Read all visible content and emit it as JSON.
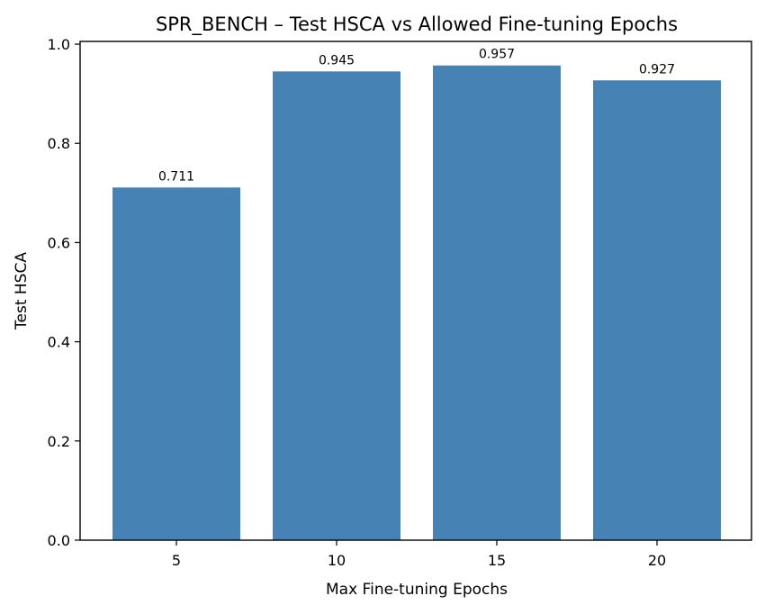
{
  "chart_data": {
    "type": "bar",
    "title": "SPR_BENCH – Test HSCA vs Allowed Fine-tuning Epochs",
    "xlabel": "Max Fine-tuning Epochs",
    "ylabel": "Test HSCA",
    "categories": [
      "5",
      "10",
      "15",
      "20"
    ],
    "values": [
      0.711,
      0.945,
      0.957,
      0.927
    ],
    "data_labels": [
      "0.711",
      "0.945",
      "0.957",
      "0.927"
    ],
    "ylim": [
      0,
      1.0
    ],
    "yticks": [
      "0.0",
      "0.2",
      "0.4",
      "0.6",
      "0.8",
      "1.0"
    ],
    "bar_color": "#4682b4",
    "grid": false,
    "legend": "none"
  }
}
